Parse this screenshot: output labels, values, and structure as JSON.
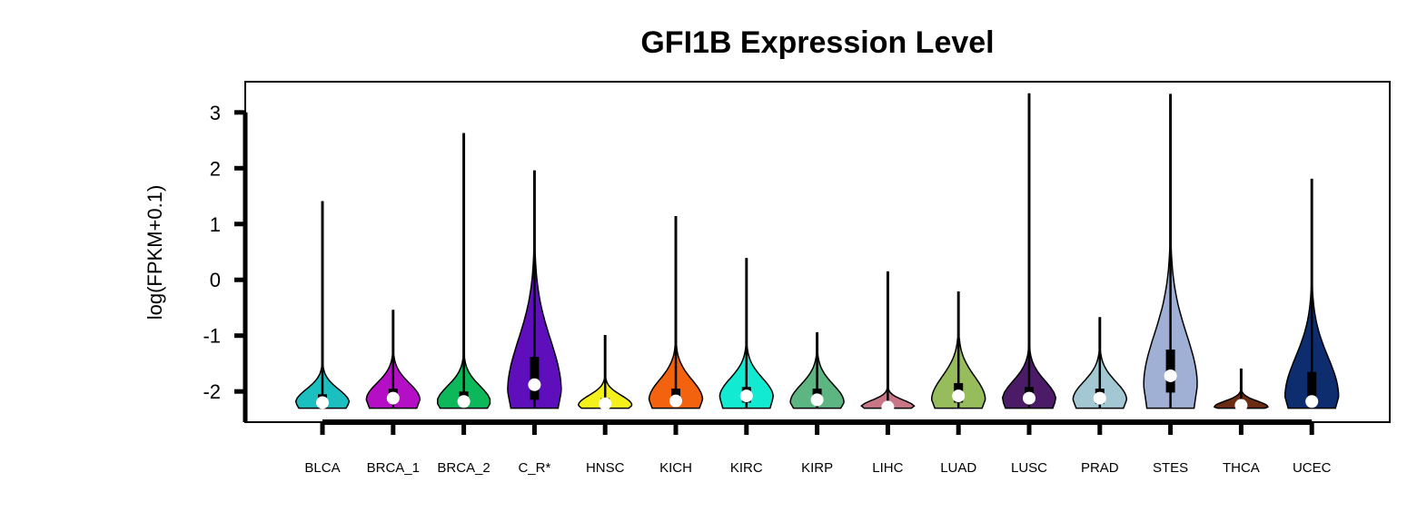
{
  "chart_data": {
    "type": "violin",
    "title": "GFI1B Expression Level",
    "xlabel": "",
    "ylabel": "log(FPKM+0.1)",
    "ylim": [
      -2.55,
      3.55
    ],
    "yticks": [
      -2,
      -1,
      0,
      1,
      2,
      3
    ],
    "grid": false,
    "legend": "none",
    "categories": [
      "BLCA",
      "BRCA_1",
      "BRCA_2",
      "C_R*",
      "HNSC",
      "KICH",
      "KIRC",
      "KIRP",
      "LIHC",
      "LUAD",
      "LUSC",
      "PRAD",
      "STES",
      "THCA",
      "UCEC"
    ],
    "series": [
      {
        "category": "BLCA",
        "color": "#1BBFBF",
        "min": -2.3,
        "max": 1.4,
        "median": -2.2,
        "q1": -2.25,
        "q3": -2.05,
        "peak": -2.2,
        "width": 0.82
      },
      {
        "category": "BRCA_1",
        "color": "#B40FC4",
        "min": -2.3,
        "max": -0.55,
        "median": -2.12,
        "q1": -2.2,
        "q3": -1.95,
        "peak": -2.15,
        "width": 0.82
      },
      {
        "category": "BRCA_2",
        "color": "#0DB85B",
        "min": -2.3,
        "max": 2.62,
        "median": -2.18,
        "q1": -2.25,
        "q3": -2.0,
        "peak": -2.2,
        "width": 0.82
      },
      {
        "category": "C_R*",
        "color": "#5E0EBA",
        "min": -2.3,
        "max": 1.95,
        "median": -1.88,
        "q1": -2.15,
        "q3": -1.38,
        "peak": -2.0,
        "width": 0.82
      },
      {
        "category": "HNSC",
        "color": "#F4F01C",
        "min": -2.3,
        "max": -1.0,
        "median": -2.22,
        "q1": -2.27,
        "q3": -2.12,
        "peak": -2.25,
        "width": 0.82
      },
      {
        "category": "KICH",
        "color": "#F3620F",
        "min": -2.3,
        "max": 1.13,
        "median": -2.17,
        "q1": -2.25,
        "q3": -1.95,
        "peak": -2.15,
        "width": 0.82
      },
      {
        "category": "KIRC",
        "color": "#12EBD2",
        "min": -2.3,
        "max": 0.38,
        "median": -2.08,
        "q1": -2.2,
        "q3": -1.92,
        "peak": -2.1,
        "width": 0.82
      },
      {
        "category": "KIRP",
        "color": "#5DB681",
        "min": -2.3,
        "max": -0.95,
        "median": -2.15,
        "q1": -2.22,
        "q3": -1.95,
        "peak": -2.2,
        "width": 0.82
      },
      {
        "category": "LIHC",
        "color": "#C97787",
        "min": -2.3,
        "max": 0.14,
        "median": -2.28,
        "q1": -2.3,
        "q3": -2.2,
        "peak": -2.28,
        "width": 0.82
      },
      {
        "category": "LUAD",
        "color": "#96BC5C",
        "min": -2.3,
        "max": -0.22,
        "median": -2.08,
        "q1": -2.2,
        "q3": -1.85,
        "peak": -2.15,
        "width": 0.82
      },
      {
        "category": "LUSC",
        "color": "#4C1B68",
        "min": -2.3,
        "max": 3.33,
        "median": -2.12,
        "q1": -2.2,
        "q3": -1.92,
        "peak": -2.15,
        "width": 0.82
      },
      {
        "category": "PRAD",
        "color": "#A3C8D4",
        "min": -2.3,
        "max": -0.68,
        "median": -2.12,
        "q1": -2.22,
        "q3": -1.95,
        "peak": -2.15,
        "width": 0.82
      },
      {
        "category": "STES",
        "color": "#A0AFD4",
        "min": -2.3,
        "max": 3.32,
        "median": -1.72,
        "q1": -2.02,
        "q3": -1.25,
        "peak": -1.9,
        "width": 0.82
      },
      {
        "category": "THCA",
        "color": "#6A2D14",
        "min": -2.3,
        "max": -1.6,
        "median": -2.25,
        "q1": -2.29,
        "q3": -2.2,
        "peak": -2.28,
        "width": 0.82
      },
      {
        "category": "UCEC",
        "color": "#0D2D6E",
        "min": -2.3,
        "max": 1.8,
        "median": -2.18,
        "q1": -2.25,
        "q3": -1.65,
        "peak": -2.1,
        "width": 0.82
      }
    ]
  }
}
